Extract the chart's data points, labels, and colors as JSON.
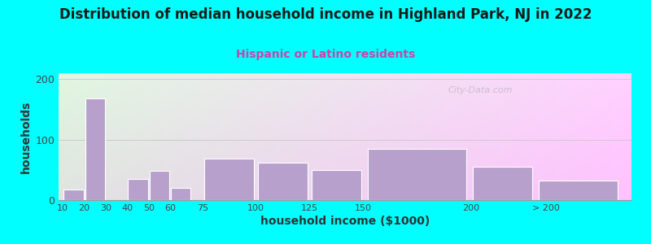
{
  "title": "Distribution of median household income in Highland Park, NJ in 2022",
  "subtitle": "Hispanic or Latino residents",
  "xlabel": "household income ($1000)",
  "ylabel": "households",
  "title_fontsize": 12,
  "subtitle_fontsize": 10,
  "subtitle_color": "#cc44aa",
  "background_outer": "#00ffff",
  "bar_color": "#b8a0cc",
  "bar_edge_color": "#ffffff",
  "categories": [
    "10",
    "20",
    "30",
    "40",
    "50",
    "60",
    "75",
    "100",
    "125",
    "150",
    "200",
    "> 200"
  ],
  "bar_lefts": [
    10,
    20,
    30,
    40,
    50,
    60,
    75,
    100,
    125,
    150,
    200,
    230
  ],
  "bar_widths": [
    10,
    10,
    10,
    10,
    10,
    10,
    25,
    25,
    25,
    50,
    30,
    40
  ],
  "values": [
    18,
    168,
    0,
    35,
    48,
    20,
    68,
    62,
    50,
    85,
    55,
    32
  ],
  "ylim": [
    0,
    210
  ],
  "yticks": [
    0,
    100,
    200
  ],
  "xtick_positions": [
    10,
    20,
    30,
    40,
    50,
    60,
    75,
    100,
    125,
    150,
    200,
    235
  ],
  "xtick_labels": [
    "10",
    "20",
    "30",
    "40",
    "50",
    "60",
    "75",
    "100",
    "125",
    "150",
    "200",
    "> 200"
  ],
  "xlim": [
    8,
    275
  ],
  "watermark": "City-Data.com"
}
